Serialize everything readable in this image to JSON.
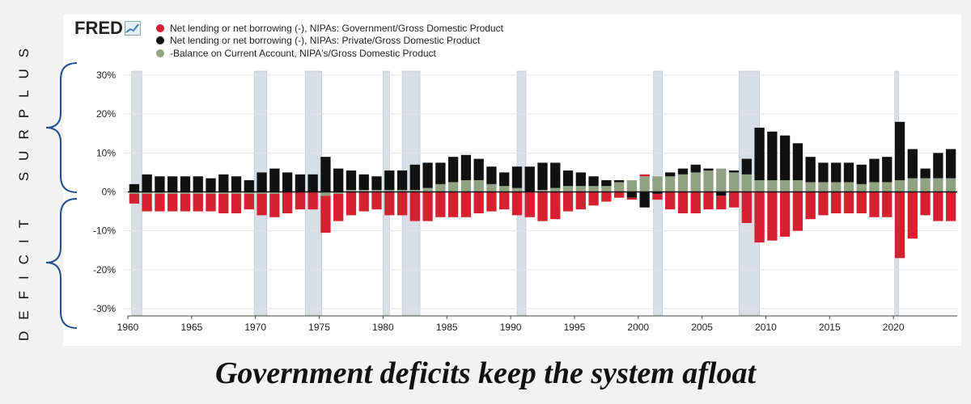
{
  "page": {
    "caption": "Government deficits keep the system afloat",
    "side_label_top": "SURPLUS",
    "side_label_bottom": "DEFICIT",
    "logo_text": "FRED"
  },
  "chart_data": {
    "type": "bar",
    "title": "",
    "xlabel": "",
    "ylabel": "",
    "ylim": [
      -30,
      30
    ],
    "xlim": [
      1960,
      2025
    ],
    "y_ticks": [
      30,
      20,
      10,
      0,
      -10,
      -20,
      -30
    ],
    "y_tick_labels": [
      "30%",
      "20%",
      "10%",
      "0%",
      "-10%",
      "-20%",
      "-30%"
    ],
    "x_ticks": [
      1960,
      1965,
      1970,
      1975,
      1980,
      1985,
      1990,
      1995,
      2000,
      2005,
      2010,
      2015,
      2020
    ],
    "x_tick_labels": [
      "1960",
      "1965",
      "1970",
      "1975",
      "1980",
      "1985",
      "1990",
      "1995",
      "2000",
      "2005",
      "2010",
      "2015",
      "2020"
    ],
    "grid": true,
    "legend_position": "top-left",
    "frequency": "annual (approximated from quarterly bars)",
    "recessions": [
      [
        1960.3,
        1961.1
      ],
      [
        1969.9,
        1970.9
      ],
      [
        1973.9,
        1975.2
      ],
      [
        1980.0,
        1980.5
      ],
      [
        1981.5,
        1982.9
      ],
      [
        1990.5,
        1991.2
      ],
      [
        2001.2,
        2001.9
      ],
      [
        2007.9,
        2009.5
      ],
      [
        2020.1,
        2020.4
      ]
    ],
    "x": [
      1960,
      1961,
      1962,
      1963,
      1964,
      1965,
      1966,
      1967,
      1968,
      1969,
      1970,
      1971,
      1972,
      1973,
      1974,
      1975,
      1976,
      1977,
      1978,
      1979,
      1980,
      1981,
      1982,
      1983,
      1984,
      1985,
      1986,
      1987,
      1988,
      1989,
      1990,
      1991,
      1992,
      1993,
      1994,
      1995,
      1996,
      1997,
      1998,
      1999,
      2000,
      2001,
      2002,
      2003,
      2004,
      2005,
      2006,
      2007,
      2008,
      2009,
      2010,
      2011,
      2012,
      2013,
      2014,
      2015,
      2016,
      2017,
      2018,
      2019,
      2020,
      2021,
      2022,
      2023,
      2024
    ],
    "series": [
      {
        "name": "Net lending or net borrowing (-), NIPAs: Government/Gross Domestic Product",
        "color": "#d6202f",
        "values": [
          -2.5,
          -4.5,
          -4.5,
          -4.5,
          -4.5,
          -4.5,
          -4.5,
          -5.0,
          -5.0,
          -4.0,
          -5.5,
          -6.0,
          -5.5,
          -4.5,
          -4.5,
          -9.5,
          -7.0,
          -6.0,
          -5.0,
          -4.5,
          -6.0,
          -6.0,
          -7.5,
          -7.5,
          -6.5,
          -6.5,
          -6.5,
          -5.5,
          -5.0,
          -4.5,
          -6.0,
          -6.5,
          -7.5,
          -7.0,
          -5.0,
          -4.5,
          -3.5,
          -2.5,
          -1.5,
          -0.5,
          0.5,
          -1.5,
          -4.5,
          -5.5,
          -5.5,
          -4.5,
          -3.5,
          -4.0,
          -8.0,
          -13.0,
          -12.5,
          -11.5,
          -10.0,
          -7.0,
          -6.0,
          -5.5,
          -5.5,
          -5.5,
          -6.5,
          -6.5,
          -17.0,
          -12.0,
          -6.0,
          -7.5,
          -7.5
        ]
      },
      {
        "name": "Net lending or net borrowing (-), NIPAs: Private/Gross Domestic Product",
        "color": "#111111",
        "values": [
          2.0,
          4.5,
          4.0,
          4.0,
          4.0,
          4.0,
          3.5,
          4.5,
          4.0,
          3.0,
          5.0,
          6.0,
          5.0,
          4.5,
          4.5,
          9.0,
          6.0,
          5.0,
          4.0,
          3.5,
          5.0,
          5.0,
          6.5,
          6.5,
          5.5,
          6.5,
          6.5,
          5.5,
          4.5,
          3.5,
          5.5,
          6.5,
          7.0,
          6.5,
          4.0,
          3.5,
          2.5,
          1.5,
          0.5,
          -1.5,
          -4.0,
          -0.5,
          1.0,
          1.5,
          2.0,
          0.5,
          -1.0,
          0.5,
          4.0,
          13.5,
          12.5,
          11.5,
          9.5,
          6.5,
          5.0,
          5.0,
          5.0,
          5.0,
          6.0,
          6.5,
          15.0,
          7.5,
          2.5,
          6.5,
          7.5
        ]
      },
      {
        "name": "-Balance on Current Account, NIPA's/Gross Domestic Product",
        "color": "#8fa383",
        "values": [
          -0.5,
          -0.5,
          -0.5,
          -0.5,
          -0.5,
          -0.5,
          -0.5,
          -0.5,
          -0.5,
          -0.5,
          -0.5,
          -0.5,
          0.0,
          0.0,
          0.0,
          -1.0,
          -0.5,
          0.5,
          0.5,
          0.5,
          0.5,
          0.5,
          0.5,
          1.0,
          2.0,
          2.5,
          3.0,
          3.0,
          2.0,
          1.5,
          1.0,
          0.0,
          0.5,
          1.0,
          1.5,
          1.5,
          1.5,
          1.5,
          2.5,
          3.0,
          4.0,
          4.0,
          4.0,
          4.5,
          5.0,
          5.5,
          6.0,
          5.0,
          4.5,
          3.0,
          3.0,
          3.0,
          3.0,
          2.5,
          2.5,
          2.5,
          2.5,
          2.0,
          2.5,
          2.5,
          3.0,
          3.5,
          3.5,
          3.5,
          3.5
        ]
      }
    ]
  }
}
